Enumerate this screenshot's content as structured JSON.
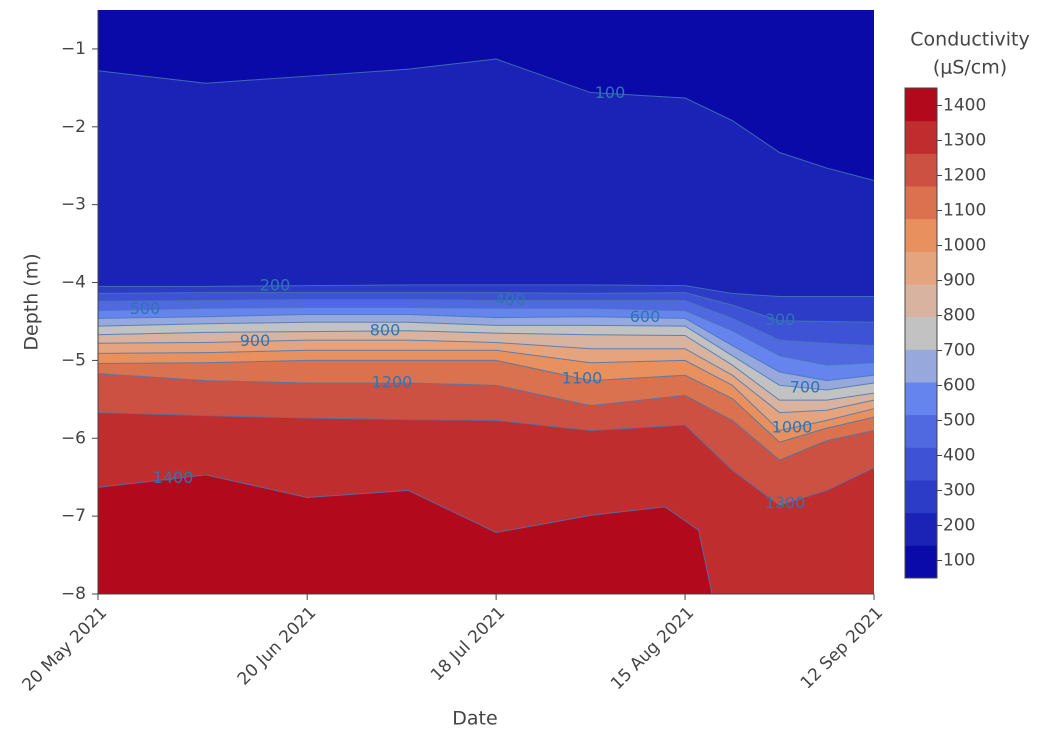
{
  "chart_data": {
    "type": "contour",
    "x_label": "Date",
    "y_label": "Depth (m)",
    "colorbar_title": [
      "Conductivity",
      "(μS/cm)"
    ],
    "xlim": [
      "2021-05-20",
      "2021-09-12"
    ],
    "xticks": [
      {
        "value": "2021-05-20",
        "label": "20 May 2021"
      },
      {
        "value": "2021-06-20",
        "label": "20 Jun 2021"
      },
      {
        "value": "2021-07-18",
        "label": "18 Jul 2021"
      },
      {
        "value": "2021-08-15",
        "label": "15 Aug 2021"
      },
      {
        "value": "2021-09-12",
        "label": "12 Sep 2021"
      }
    ],
    "ylim": [
      -8,
      -0.5
    ],
    "yticks": [
      {
        "value": -8,
        "label": "−8"
      },
      {
        "value": -7,
        "label": "−7"
      },
      {
        "value": -6,
        "label": "−6"
      },
      {
        "value": -5,
        "label": "−5"
      },
      {
        "value": -4,
        "label": "−4"
      },
      {
        "value": -3,
        "label": "−3"
      },
      {
        "value": -2,
        "label": "−2"
      },
      {
        "value": -1,
        "label": "−1"
      }
    ],
    "clim": [
      50,
      1450
    ],
    "colorbar_ticks": [
      100,
      200,
      300,
      400,
      500,
      600,
      700,
      800,
      900,
      1000,
      1100,
      1200,
      1300,
      1400
    ],
    "colors": [
      "#0a0aa8",
      "#1a23b6",
      "#2c3cc6",
      "#3d52d4",
      "#5068e0",
      "#6584ee",
      "#97a8dc",
      "#c2c2c2",
      "#d8b4a0",
      "#e6a47e",
      "#e8905e",
      "#da724f",
      "#cc5142",
      "#bf2d2f",
      "#b20a1c"
    ],
    "x": [
      "2021-05-20",
      "2021-06-05",
      "2021-06-20",
      "2021-07-05",
      "2021-07-18",
      "2021-08-01",
      "2021-08-15",
      "2021-08-22",
      "2021-08-29",
      "2021-09-05",
      "2021-09-12"
    ],
    "contours": [
      {
        "level": 100,
        "values": [
          -1.28,
          -1.44,
          -1.35,
          -1.26,
          -1.13,
          -1.56,
          -1.63,
          -1.92,
          -2.33,
          -2.53,
          -2.69
        ]
      },
      {
        "level": 200,
        "values": [
          -4.05,
          -4.05,
          -4.04,
          -4.03,
          -4.03,
          -4.03,
          -4.04,
          -4.14,
          -4.18,
          -4.18,
          -4.18
        ]
      },
      {
        "level": 300,
        "values": [
          -4.14,
          -4.13,
          -4.13,
          -4.13,
          -4.13,
          -4.14,
          -4.13,
          -4.29,
          -4.49,
          -4.5,
          -4.51
        ]
      },
      {
        "level": 400,
        "values": [
          -4.24,
          -4.23,
          -4.22,
          -4.22,
          -4.23,
          -4.23,
          -4.23,
          -4.46,
          -4.74,
          -4.78,
          -4.81
        ]
      },
      {
        "level": 500,
        "values": [
          -4.36,
          -4.33,
          -4.32,
          -4.32,
          -4.33,
          -4.33,
          -4.36,
          -4.62,
          -4.94,
          -5.06,
          -5.03
        ]
      },
      {
        "level": 600,
        "values": [
          -4.46,
          -4.44,
          -4.41,
          -4.41,
          -4.45,
          -4.44,
          -4.46,
          -4.81,
          -5.15,
          -5.26,
          -5.19
        ]
      },
      {
        "level": 700,
        "values": [
          -4.56,
          -4.53,
          -4.51,
          -4.51,
          -4.55,
          -4.55,
          -4.56,
          -4.94,
          -5.32,
          -5.38,
          -5.29
        ]
      },
      {
        "level": 800,
        "values": [
          -4.67,
          -4.64,
          -4.63,
          -4.62,
          -4.65,
          -4.67,
          -4.68,
          -5.06,
          -5.51,
          -5.51,
          -5.42
        ]
      },
      {
        "level": 900,
        "values": [
          -4.78,
          -4.77,
          -4.74,
          -4.74,
          -4.77,
          -4.85,
          -4.85,
          -5.19,
          -5.67,
          -5.64,
          -5.51
        ]
      },
      {
        "level": 1000,
        "values": [
          -4.91,
          -4.9,
          -4.87,
          -4.87,
          -4.87,
          -5.03,
          -5.0,
          -5.32,
          -5.9,
          -5.77,
          -5.62
        ]
      },
      {
        "level": 1100,
        "values": [
          -5.04,
          -5.03,
          -5.0,
          -5.0,
          -5.0,
          -5.26,
          -5.19,
          -5.49,
          -6.05,
          -5.87,
          -5.73
        ]
      },
      {
        "level": 1200,
        "values": [
          -5.17,
          -5.26,
          -5.29,
          -5.29,
          -5.32,
          -5.58,
          -5.45,
          -5.77,
          -6.28,
          -6.03,
          -5.9
        ]
      },
      {
        "level": 1300,
        "values": [
          -5.67,
          -5.71,
          -5.74,
          -5.76,
          -5.77,
          -5.9,
          -5.83,
          -6.41,
          -6.86,
          -6.67,
          -6.38
        ]
      },
      {
        "level": 1400,
        "x": [
          "2021-05-20",
          "2021-06-05",
          "2021-06-20",
          "2021-07-05",
          "2021-07-18",
          "2021-08-01",
          "2021-08-12",
          "2021-08-17",
          "2021-08-19"
        ],
        "values": [
          -6.63,
          -6.47,
          -6.76,
          -6.67,
          -7.21,
          -6.99,
          -6.88,
          -7.18,
          -8
        ]
      }
    ]
  }
}
